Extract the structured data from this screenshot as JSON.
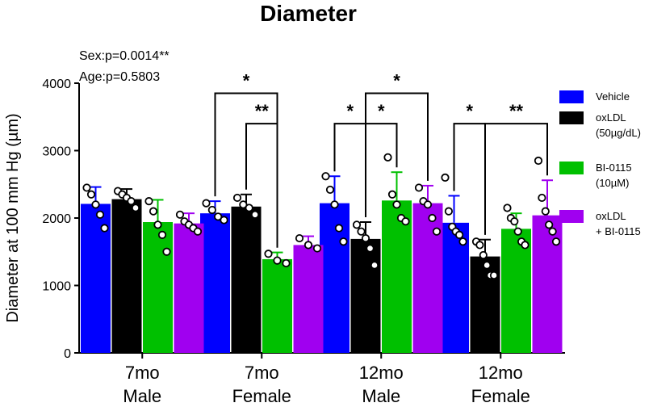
{
  "chart_data": {
    "type": "bar",
    "title": "Diameter",
    "ylabel": "Diameter at 100 mm Hg (µm)",
    "xlabel": "",
    "ylim": [
      0,
      4000
    ],
    "yticks": [
      0,
      1000,
      2000,
      3000,
      4000
    ],
    "categories": [
      {
        "line1": "7mo",
        "line2": "Male"
      },
      {
        "line1": "7mo",
        "line2": "Female"
      },
      {
        "line1": "12mo",
        "line2": "Male"
      },
      {
        "line1": "12mo",
        "line2": "Female"
      }
    ],
    "stats": [
      {
        "text": "Sex:p=0.0014**"
      },
      {
        "text": "Age:p=0.5803"
      }
    ],
    "series": [
      {
        "name": "Vehicle",
        "legend_lines": [
          "Vehicle"
        ],
        "color": "#0000ff",
        "values": [
          2210,
          2070,
          2220,
          1930
        ],
        "errors": [
          250,
          180,
          400,
          400
        ],
        "points": [
          [
            2450,
            2350,
            2200,
            2050,
            1850
          ],
          [
            2220,
            2120,
            2020,
            1970
          ],
          [
            2620,
            2420,
            2200,
            1850,
            1650
          ],
          [
            2600,
            2100,
            1870,
            1800,
            1750,
            1650
          ]
        ]
      },
      {
        "name": "oxLDL (50µg/dL)",
        "legend_lines": [
          "oxLDL",
          "(50µg/dL)"
        ],
        "color": "#000000",
        "values": [
          2280,
          2170,
          1690,
          1430
        ],
        "errors": [
          150,
          180,
          250,
          250
        ],
        "points": [
          [
            2400,
            2350,
            2300,
            2250,
            2150
          ],
          [
            2300,
            2200,
            2150,
            2050
          ],
          [
            1900,
            1800,
            1700,
            1550,
            1300
          ],
          [
            1650,
            1600,
            1450,
            1300,
            1150,
            1150
          ]
        ]
      },
      {
        "name": "BI-0115 (10µM)",
        "legend_lines": [
          "BI-0115",
          "(10µM)"
        ],
        "color": "#00c000",
        "values": [
          1940,
          1390,
          2260,
          1840
        ],
        "errors": [
          330,
          100,
          420,
          230
        ],
        "points": [
          [
            2250,
            2100,
            1900,
            1750,
            1500
          ],
          [
            1470,
            1370,
            1330
          ],
          [
            2900,
            2350,
            2200,
            2000,
            1950
          ],
          [
            2150,
            2000,
            1950,
            1800,
            1650,
            1600
          ]
        ]
      },
      {
        "name": "oxLDL + BI-0115",
        "legend_lines": [
          "oxLDL",
          "+ BI-0115"
        ],
        "color": "#a000f0",
        "values": [
          1920,
          1600,
          2220,
          2040
        ],
        "errors": [
          150,
          130,
          260,
          520
        ],
        "points": [
          [
            2050,
            1950,
            1900,
            1850,
            1800
          ],
          [
            1700,
            1600,
            1550
          ],
          [
            2450,
            2250,
            2200,
            2000,
            1800
          ],
          [
            2850,
            2300,
            2100,
            1900,
            1800,
            1650
          ]
        ]
      }
    ],
    "significance": [
      {
        "group": 1,
        "from": 0,
        "to": 2,
        "y": 3850,
        "label": "*"
      },
      {
        "group": 1,
        "from": 1,
        "to": 2,
        "y": 3400,
        "label": "**"
      },
      {
        "group": 2,
        "from": 0,
        "to": 1,
        "y": 3400,
        "label": "*"
      },
      {
        "group": 2,
        "from": 1,
        "to": 2,
        "y": 3400,
        "label": "*"
      },
      {
        "group": 2,
        "from": 1,
        "to": 3,
        "y": 3850,
        "label": "*"
      },
      {
        "group": 3,
        "from": 0,
        "to": 1,
        "y": 3400,
        "label": "*"
      },
      {
        "group": 3,
        "from": 1,
        "to": 3,
        "y": 3400,
        "label": "**"
      }
    ]
  }
}
